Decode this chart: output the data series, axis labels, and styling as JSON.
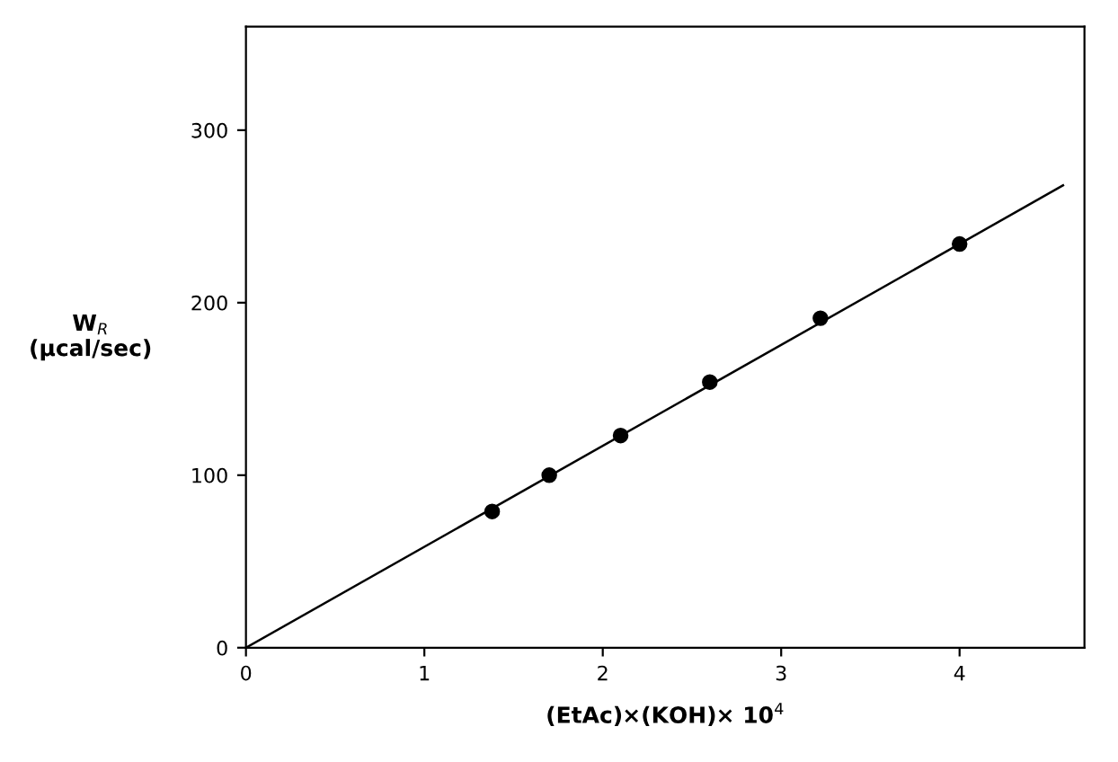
{
  "chart_data": {
    "type": "scatter",
    "xlabel": "(EtAc)×(KOH)× 10$^{4}$",
    "ylabel": "W$_{R}$\n(μcal/sec)",
    "xlim": [
      0,
      4.7
    ],
    "ylim": [
      0,
      360
    ],
    "xticks": [
      0,
      1,
      2,
      3,
      4
    ],
    "yticks": [
      0,
      100,
      200,
      300
    ],
    "grid": false,
    "legend": false,
    "series": [
      {
        "type": "scatter",
        "color": "#000000",
        "marker": "circle",
        "x": [
          1.38,
          1.7,
          2.1,
          2.6,
          3.22,
          4.0
        ],
        "values": [
          79,
          100,
          123,
          154,
          191,
          234
        ]
      },
      {
        "type": "line",
        "color": "#000000",
        "marker": "none",
        "line_style": "solid",
        "x": [
          0,
          4.58
        ],
        "values": [
          0,
          268
        ]
      }
    ]
  }
}
